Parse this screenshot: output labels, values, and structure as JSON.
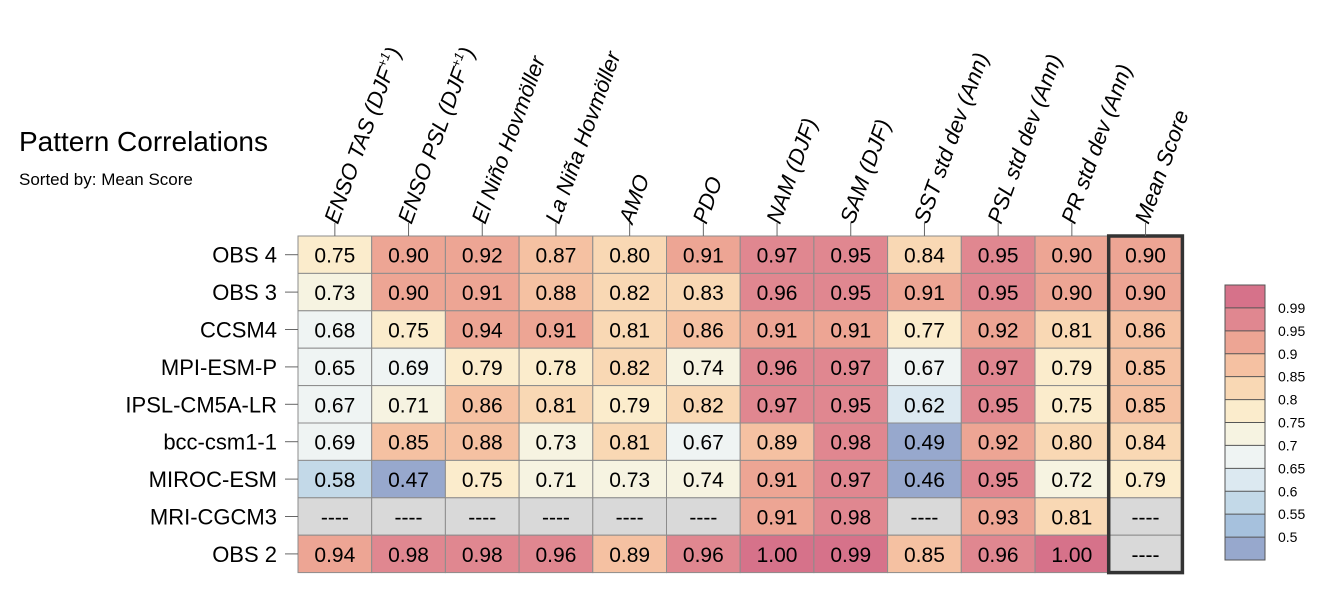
{
  "chart_data": {
    "type": "heatmap",
    "title": "Pattern Correlations",
    "subtitle": "Sorted by: Mean Score",
    "columns": [
      "ENSO TAS (DJF+1)",
      "ENSO PSL (DJF+1)",
      "El Niño Hovmöller",
      "La Niña Hovmöller",
      "AMO",
      "PDO",
      "NAM (DJF)",
      "SAM (DJF)",
      "SST std dev (Ann)",
      "PSL std dev (Ann)",
      "PR std dev (Ann)",
      "Mean Score"
    ],
    "column_labels": [
      {
        "text": "ENSO TAS (DJF",
        "sup": "+1",
        "tail": ")"
      },
      {
        "text": "ENSO PSL (DJF",
        "sup": "+1",
        "tail": ")"
      },
      {
        "text": "El Niño Hovmöller",
        "sup": "",
        "tail": ""
      },
      {
        "text": "La Niña Hovmöller",
        "sup": "",
        "tail": ""
      },
      {
        "text": "AMO",
        "sup": "",
        "tail": ""
      },
      {
        "text": "PDO",
        "sup": "",
        "tail": ""
      },
      {
        "text": "NAM (DJF)",
        "sup": "",
        "tail": ""
      },
      {
        "text": "SAM (DJF)",
        "sup": "",
        "tail": ""
      },
      {
        "text": "SST std dev (Ann)",
        "sup": "",
        "tail": ""
      },
      {
        "text": "PSL std dev (Ann)",
        "sup": "",
        "tail": ""
      },
      {
        "text": "PR std dev (Ann)",
        "sup": "",
        "tail": ""
      },
      {
        "text": "Mean Score",
        "sup": "",
        "tail": ""
      }
    ],
    "rows": [
      "OBS 4",
      "OBS 3",
      "CCSM4",
      "MPI-ESM-P",
      "IPSL-CM5A-LR",
      "bcc-csm1-1",
      "MIROC-ESM",
      "MRI-CGCM3",
      "OBS 2"
    ],
    "values": [
      [
        "0.75",
        "0.90",
        "0.92",
        "0.87",
        "0.80",
        "0.91",
        "0.97",
        "0.95",
        "0.84",
        "0.95",
        "0.90",
        "0.90"
      ],
      [
        "0.73",
        "0.90",
        "0.91",
        "0.88",
        "0.82",
        "0.83",
        "0.96",
        "0.95",
        "0.91",
        "0.95",
        "0.90",
        "0.90"
      ],
      [
        "0.68",
        "0.75",
        "0.94",
        "0.91",
        "0.81",
        "0.86",
        "0.91",
        "0.91",
        "0.77",
        "0.92",
        "0.81",
        "0.86"
      ],
      [
        "0.65",
        "0.69",
        "0.79",
        "0.78",
        "0.82",
        "0.74",
        "0.96",
        "0.97",
        "0.67",
        "0.97",
        "0.79",
        "0.85"
      ],
      [
        "0.67",
        "0.71",
        "0.86",
        "0.81",
        "0.79",
        "0.82",
        "0.97",
        "0.95",
        "0.62",
        "0.95",
        "0.75",
        "0.85"
      ],
      [
        "0.69",
        "0.85",
        "0.88",
        "0.73",
        "0.81",
        "0.67",
        "0.89",
        "0.98",
        "0.49",
        "0.92",
        "0.80",
        "0.84"
      ],
      [
        "0.58",
        "0.47",
        "0.75",
        "0.71",
        "0.73",
        "0.74",
        "0.91",
        "0.97",
        "0.46",
        "0.95",
        "0.72",
        "0.79"
      ],
      [
        "----",
        "----",
        "----",
        "----",
        "----",
        "----",
        "0.91",
        "0.98",
        "----",
        "0.93",
        "0.81",
        "----"
      ],
      [
        "0.94",
        "0.98",
        "0.98",
        "0.96",
        "0.89",
        "0.96",
        "1.00",
        "0.99",
        "0.85",
        "0.96",
        "1.00",
        "----"
      ]
    ],
    "missing_marker": "----",
    "highlighted_column": "Mean Score",
    "colorbar": {
      "levels": [
        "0.99",
        "0.95",
        "0.9",
        "0.85",
        "0.8",
        "0.75",
        "0.7",
        "0.65",
        "0.6",
        "0.55",
        "0.5"
      ],
      "thresholds": [
        0.5,
        0.55,
        0.6,
        0.65,
        0.7,
        0.75,
        0.8,
        0.85,
        0.9,
        0.95,
        0.99
      ],
      "colors": [
        "#97a8cd",
        "#a6c1dd",
        "#c3d9e8",
        "#dce9f1",
        "#eff4f3",
        "#f6f3e1",
        "#fbeccc",
        "#f9d8b4",
        "#f5c1a2",
        "#eda594",
        "#e08790",
        "#d6728a"
      ],
      "missing_color": "#d9d9d9"
    }
  }
}
